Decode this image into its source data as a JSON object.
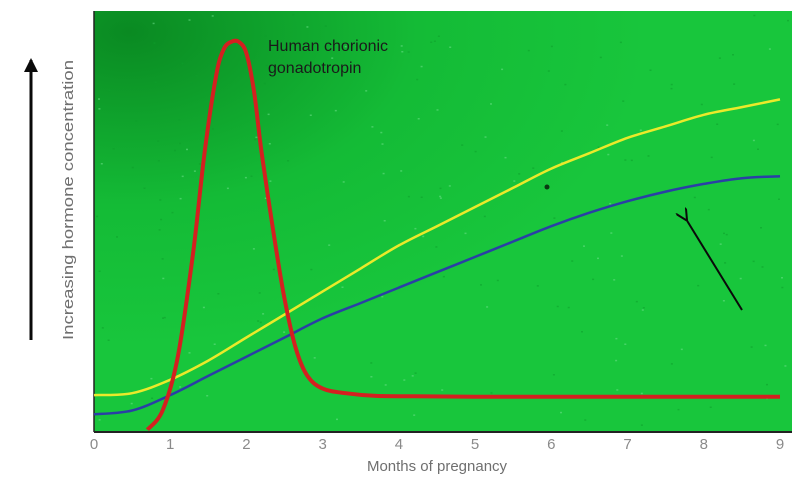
{
  "chart_data": {
    "type": "line",
    "xlabel": "Months of pregnancy",
    "ylabel": "Increasing hormone concentration",
    "xlim": [
      0,
      9
    ],
    "ylim": [
      0,
      1
    ],
    "x_ticks": [
      "0",
      "1",
      "2",
      "3",
      "4",
      "5",
      "6",
      "7",
      "8",
      "9"
    ],
    "annotations": [
      {
        "text_lines": [
          "Human chorionic",
          "gonadotropin"
        ],
        "target_series": "hcg"
      }
    ],
    "series": [
      {
        "id": "hcg",
        "color": "#d42020",
        "x": [
          0.7,
          0.9,
          1.1,
          1.3,
          1.45,
          1.6,
          1.7,
          1.8,
          1.9,
          2.0,
          2.1,
          2.2,
          2.35,
          2.5,
          2.65,
          2.8,
          3.0,
          3.3,
          3.7,
          4.2,
          5.0,
          6.0,
          7.0,
          8.0,
          9.0
        ],
        "y": [
          -0.02,
          0.03,
          0.17,
          0.44,
          0.7,
          0.9,
          0.97,
          0.99,
          0.99,
          0.96,
          0.86,
          0.7,
          0.5,
          0.32,
          0.19,
          0.12,
          0.087,
          0.075,
          0.068,
          0.067,
          0.066,
          0.066,
          0.066,
          0.066,
          0.066
        ]
      },
      {
        "id": "yellow-hormone",
        "color": "#eaea2a",
        "x": [
          0.0,
          0.5,
          1.0,
          1.5,
          2.0,
          2.5,
          3.0,
          3.5,
          4.0,
          4.5,
          5.0,
          5.5,
          6.0,
          6.5,
          7.0,
          7.5,
          8.0,
          8.5,
          9.0
        ],
        "y": [
          0.07,
          0.075,
          0.11,
          0.16,
          0.22,
          0.28,
          0.34,
          0.4,
          0.46,
          0.51,
          0.56,
          0.61,
          0.66,
          0.7,
          0.74,
          0.77,
          0.8,
          0.82,
          0.84
        ]
      },
      {
        "id": "blue-hormone",
        "color": "#2a3fa6",
        "x": [
          0.0,
          0.5,
          1.0,
          1.5,
          2.0,
          2.5,
          3.0,
          3.5,
          4.0,
          4.5,
          5.0,
          5.5,
          6.0,
          6.5,
          7.0,
          7.5,
          8.0,
          8.5,
          9.0
        ],
        "y": [
          0.02,
          0.03,
          0.07,
          0.12,
          0.17,
          0.22,
          0.27,
          0.31,
          0.35,
          0.39,
          0.43,
          0.47,
          0.51,
          0.545,
          0.575,
          0.6,
          0.62,
          0.635,
          0.64
        ]
      }
    ],
    "arrow_marker": {
      "points_to_series": "blue-hormone",
      "x": 7.45,
      "y": 0.57
    },
    "grid": false,
    "plot_background": "#16c23a",
    "plot_background_dark": "#0c9424"
  }
}
